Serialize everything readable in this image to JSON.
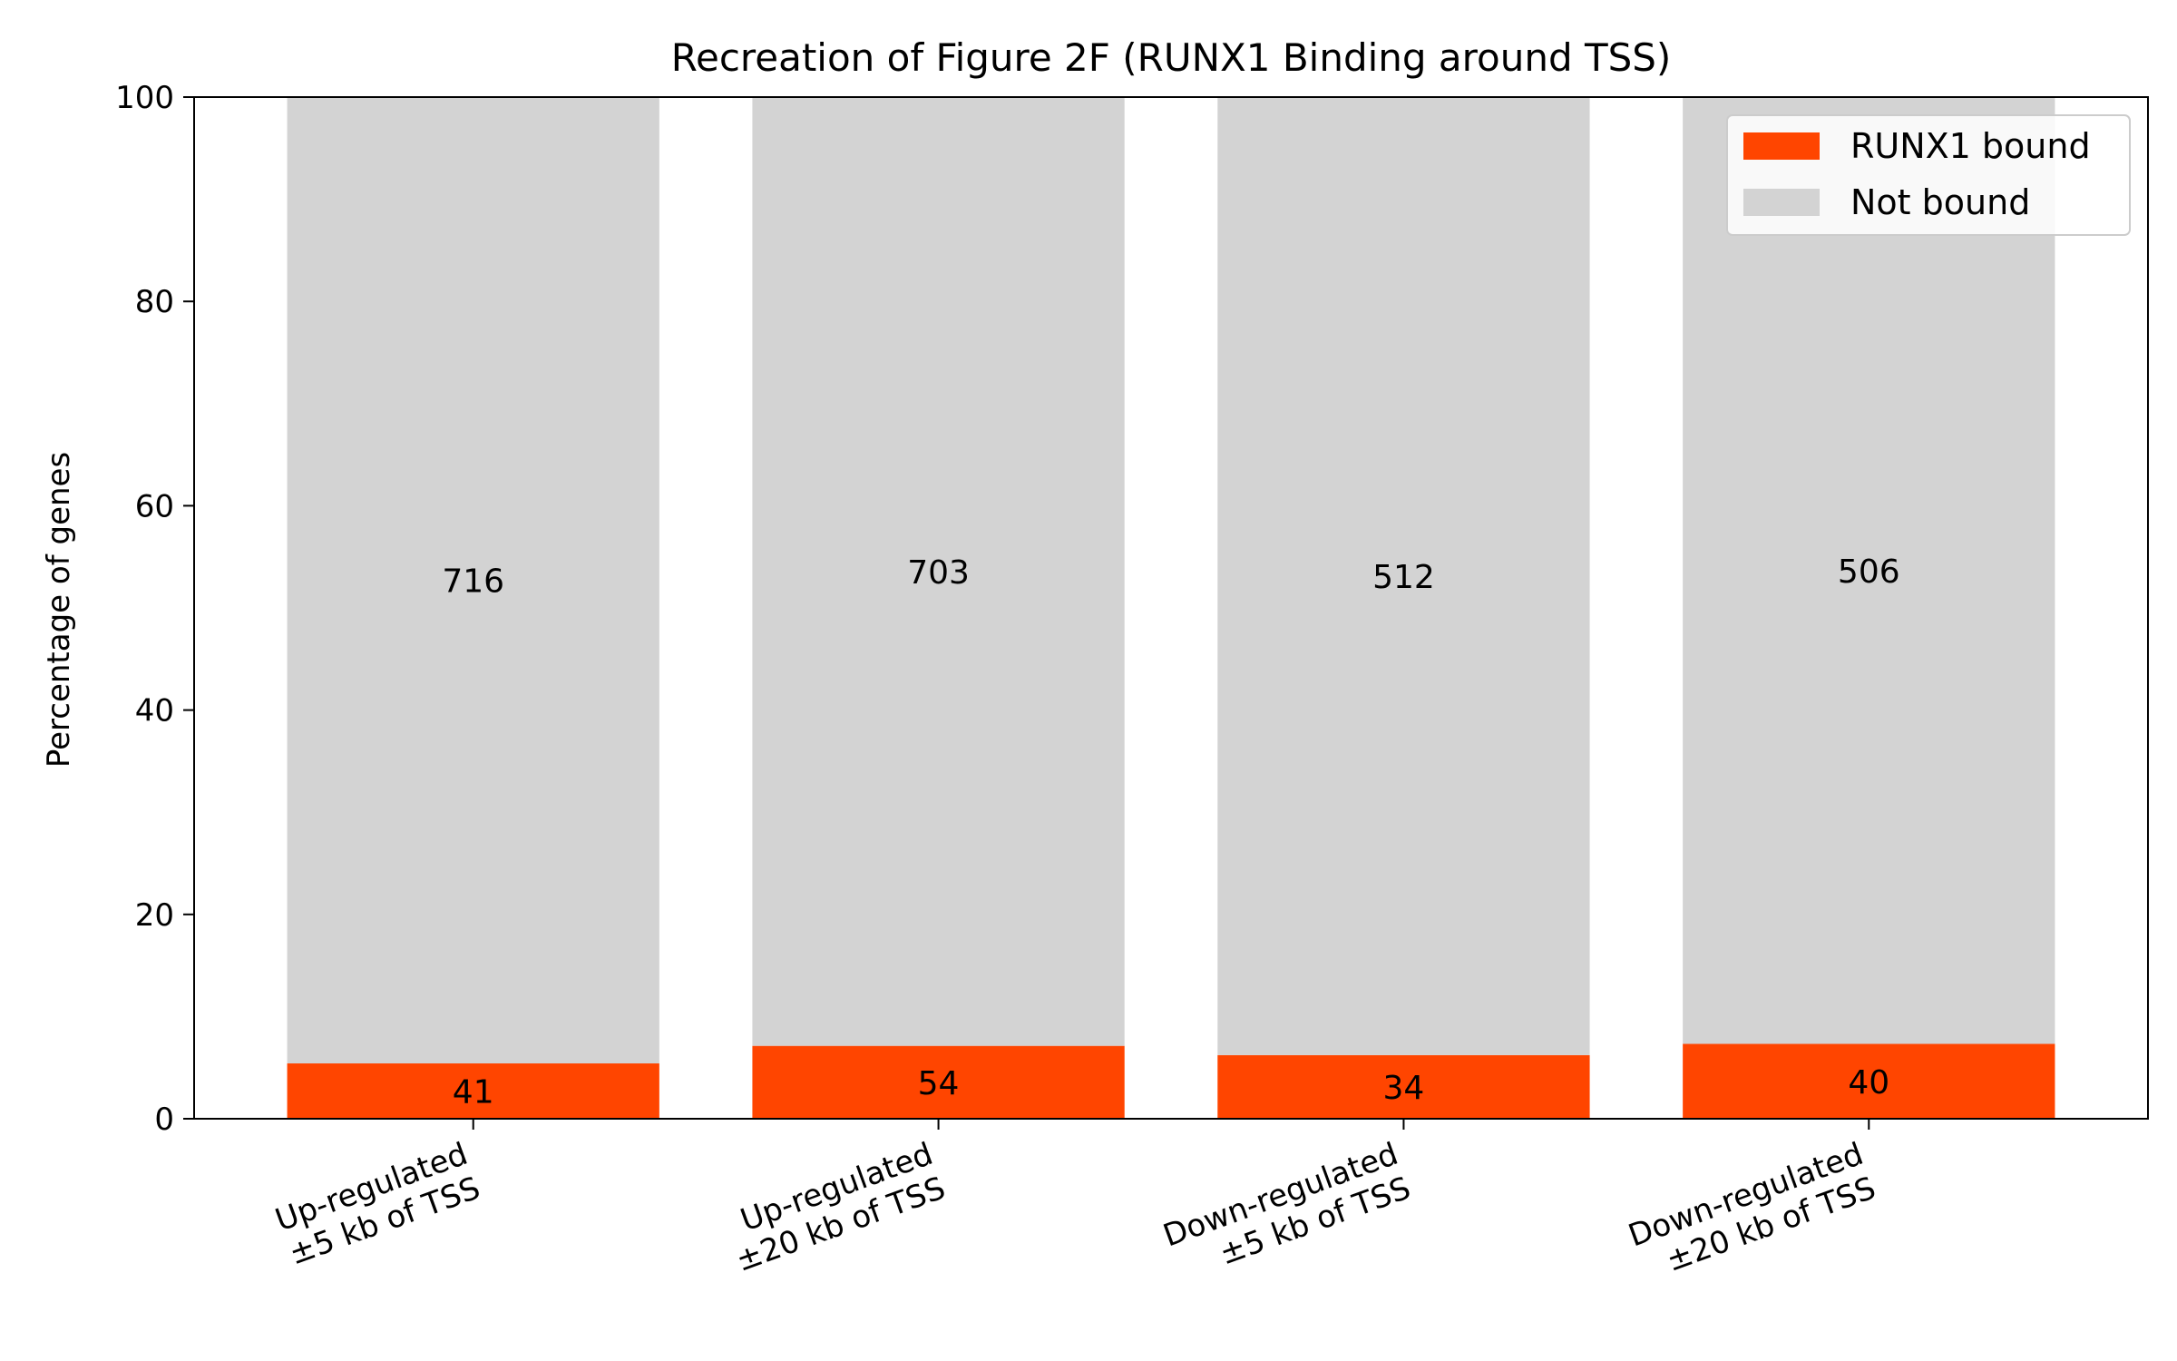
{
  "chart_data": {
    "type": "bar",
    "stacked": true,
    "percent": true,
    "title": "Recreation of Figure 2F (RUNX1 Binding around TSS)",
    "xlabel": "",
    "ylabel": "Percentage of genes",
    "ylim": [
      0,
      100
    ],
    "yticks": [
      0,
      20,
      40,
      60,
      80,
      100
    ],
    "grid": false,
    "legend_position": "top-right",
    "categories": [
      [
        "Up-regulated",
        "±5 kb of TSS"
      ],
      [
        "Up-regulated",
        "±20 kb of TSS"
      ],
      [
        "Down-regulated",
        "±5 kb of TSS"
      ],
      [
        "Down-regulated",
        "±20 kb of TSS"
      ]
    ],
    "series": [
      {
        "name": "RUNX1 bound",
        "color": "#ff4500",
        "counts": [
          41,
          54,
          34,
          40
        ]
      },
      {
        "name": "Not bound",
        "color": "#d3d3d3",
        "counts": [
          716,
          703,
          512,
          506
        ]
      }
    ]
  }
}
